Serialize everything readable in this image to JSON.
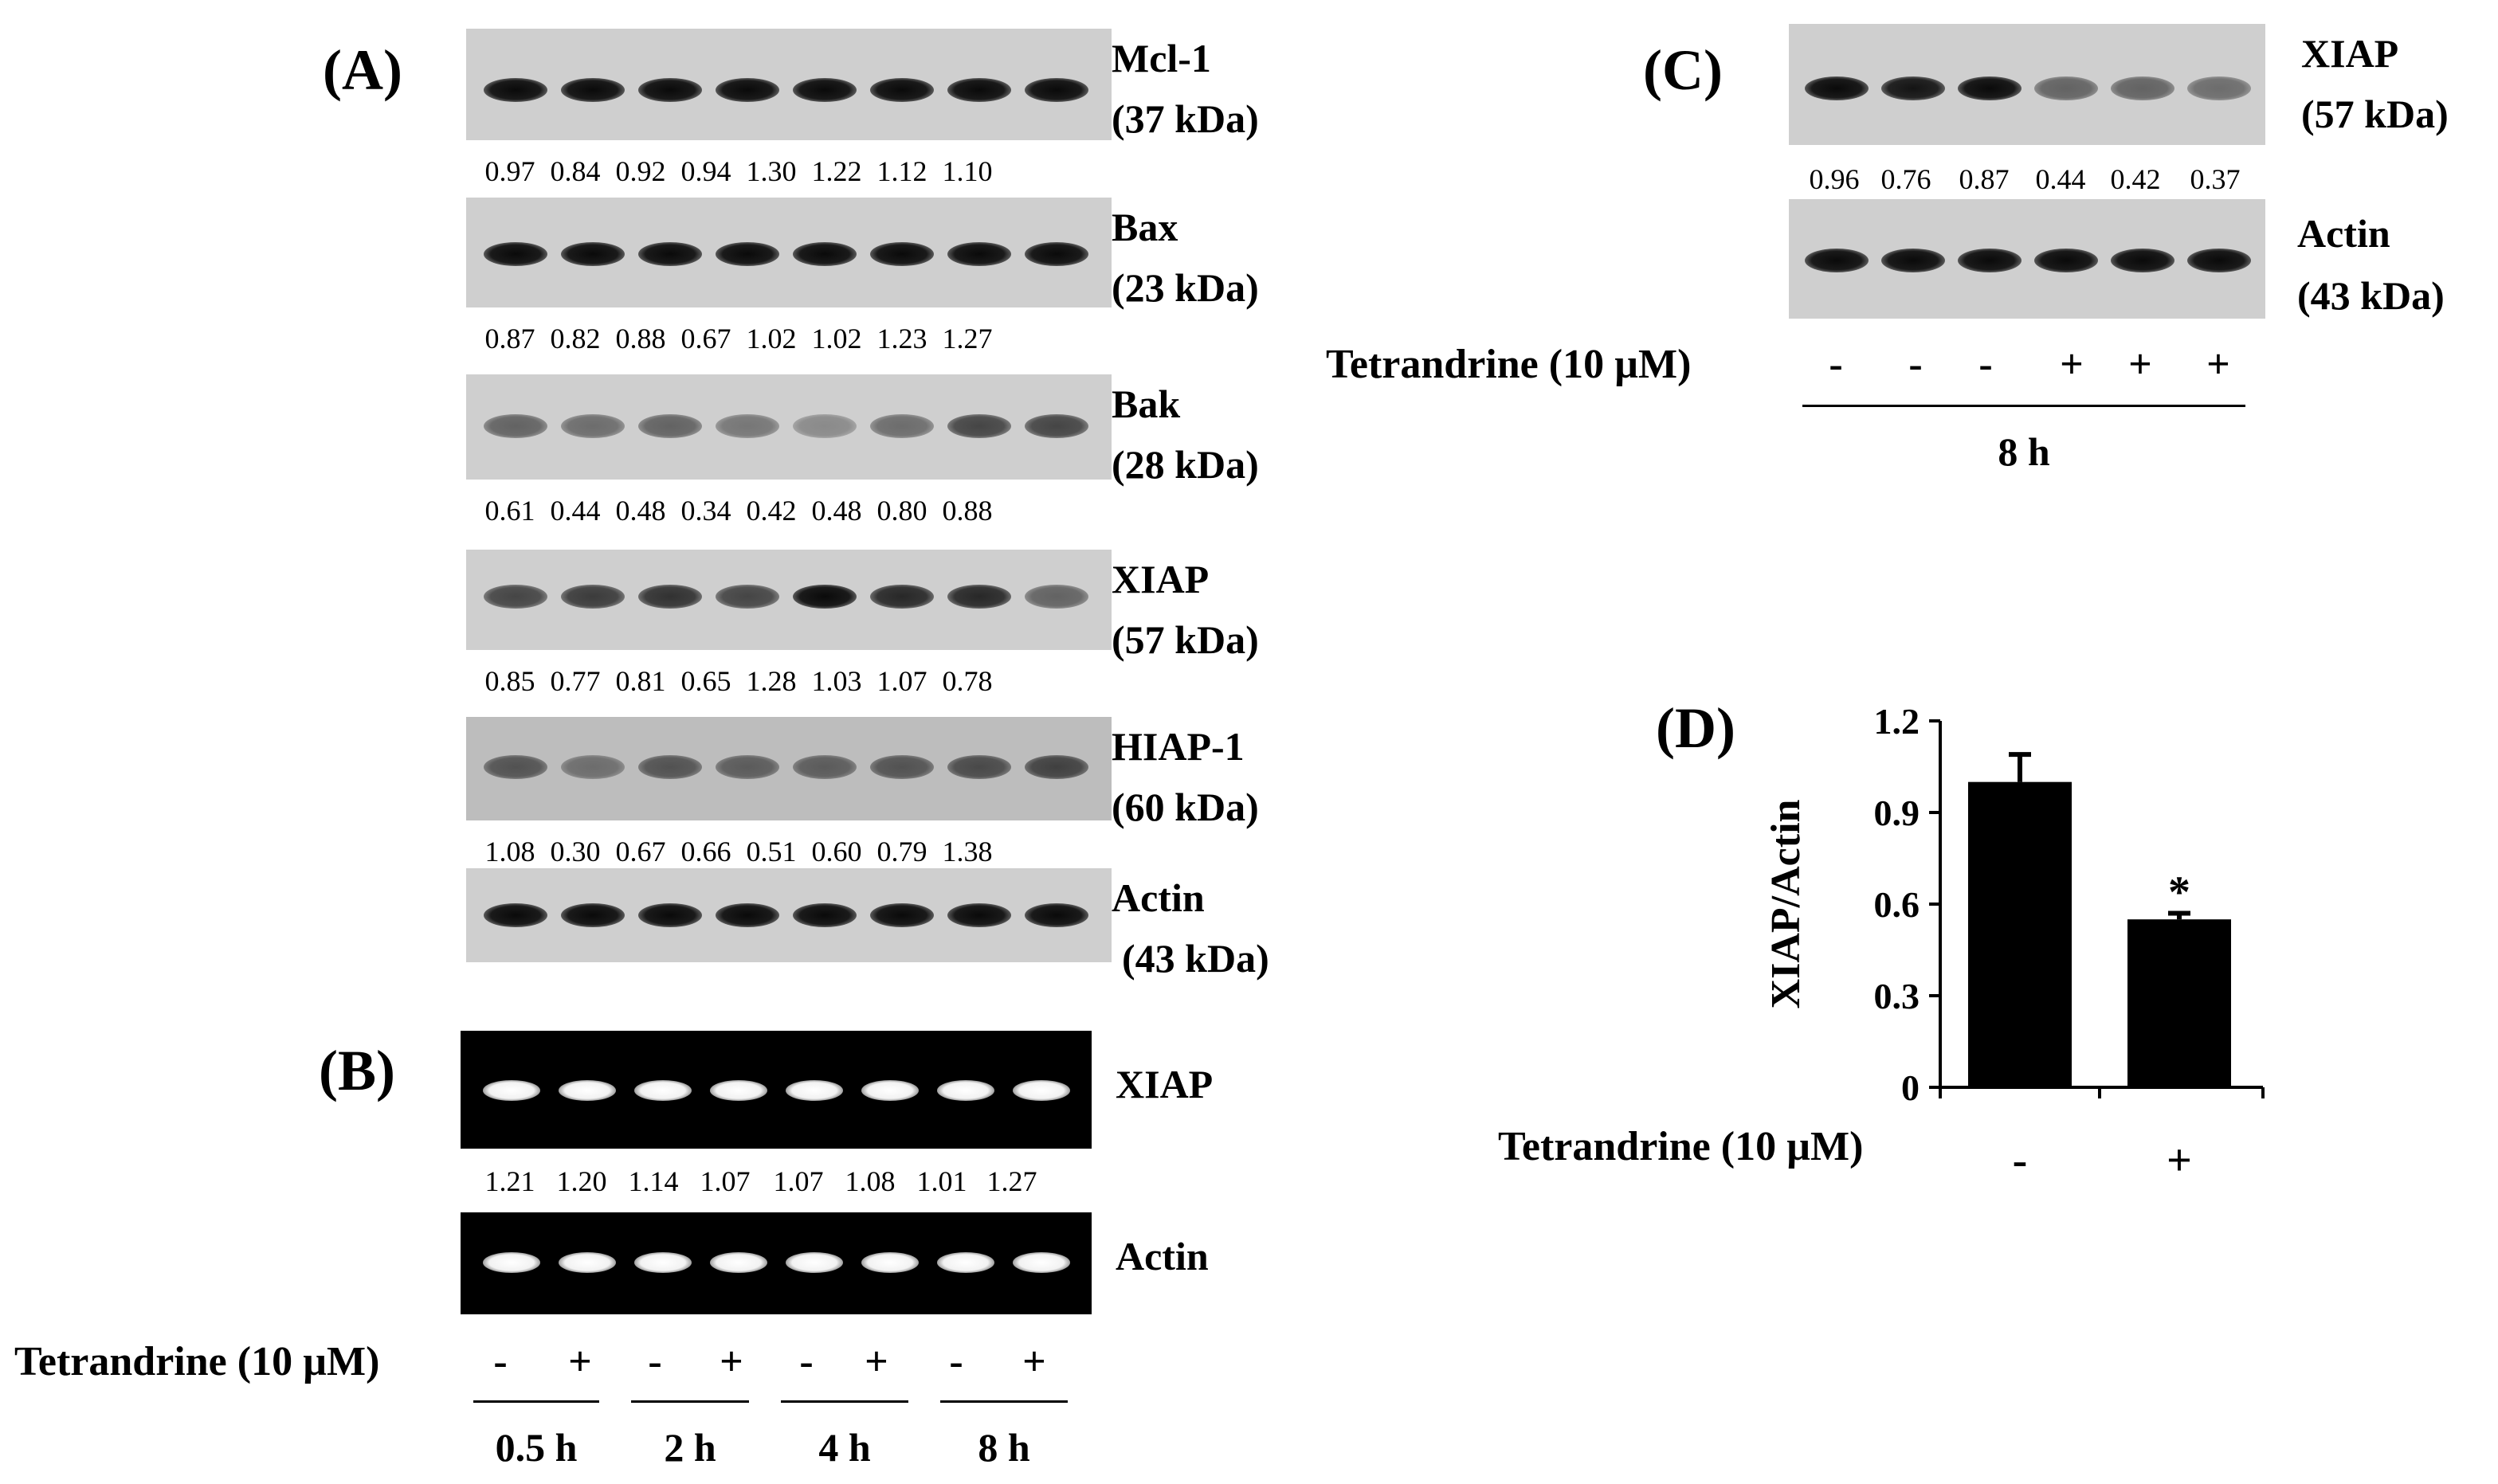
{
  "panelA": {
    "letter": "(A)",
    "blots": [
      {
        "name": "Mcl-1",
        "size": "(37 kDa)",
        "values": [
          "0.97",
          "0.84",
          "0.92",
          "0.94",
          "1.30",
          "1.22",
          "1.12",
          "1.10"
        ]
      },
      {
        "name": "Bax",
        "size": "(23 kDa)",
        "values": [
          "0.87",
          "0.82",
          "0.88",
          "0.67",
          "1.02",
          "1.02",
          "1.23",
          "1.27"
        ]
      },
      {
        "name": "Bak",
        "size": "(28 kDa)",
        "values": [
          "0.61",
          "0.44",
          "0.48",
          "0.34",
          "0.42",
          "0.48",
          "0.80",
          "0.88"
        ]
      },
      {
        "name": "XIAP",
        "size": "(57 kDa)",
        "values": [
          "0.85",
          "0.77",
          "0.81",
          "0.65",
          "1.28",
          "1.03",
          "1.07",
          "0.78"
        ]
      },
      {
        "name": "HIAP-1",
        "size": "(60 kDa)",
        "values": [
          "1.08",
          "0.30",
          "0.67",
          "0.66",
          "0.51",
          "0.60",
          "0.79",
          "1.38"
        ]
      },
      {
        "name": "Actin",
        "size": "(43 kDa)",
        "values": []
      }
    ]
  },
  "panelB": {
    "letter": "(B)",
    "gel1": {
      "name": "XIAP",
      "values": [
        "1.21",
        "1.20",
        "1.14",
        "1.07",
        "1.07",
        "1.08",
        "1.01",
        "1.27"
      ]
    },
    "gel2": {
      "name": "Actin"
    },
    "treatment_label": "Tetrandrine (10 µM)",
    "signs": [
      "-",
      "+",
      "-",
      "+",
      "-",
      "+",
      "-",
      "+"
    ],
    "timepoints": [
      "0.5 h",
      "2 h",
      "4 h",
      "8 h"
    ]
  },
  "panelC": {
    "letter": "(C)",
    "blot1": {
      "name": "XIAP",
      "size": "(57 kDa)",
      "values": [
        "0.96",
        "0.76",
        "0.87",
        "0.44",
        "0.42",
        "0.37"
      ]
    },
    "blot2": {
      "name": "Actin",
      "size": "(43 kDa)"
    },
    "treatment_label": "Tetrandrine (10 µM)",
    "signs": [
      "-",
      "-",
      "-",
      "+",
      "+",
      "+"
    ],
    "timepoint": "8 h"
  },
  "panelD": {
    "letter": "(D)",
    "treatment_label": "Tetrandrine (10 µM)"
  },
  "chart_data": {
    "type": "bar",
    "categories": [
      "-",
      "+"
    ],
    "values": [
      1.0,
      0.55
    ],
    "errors": [
      0.09,
      0.02
    ],
    "significance": [
      "",
      "*"
    ],
    "ylabel": "XIAP/Actin",
    "xlabel": "Tetrandrine (10 µM)",
    "ylim": [
      0,
      1.2
    ],
    "yticks": [
      "0",
      "0.3",
      "0.6",
      "0.9",
      "1.2"
    ],
    "colors": {
      "bar": "#000000"
    }
  }
}
